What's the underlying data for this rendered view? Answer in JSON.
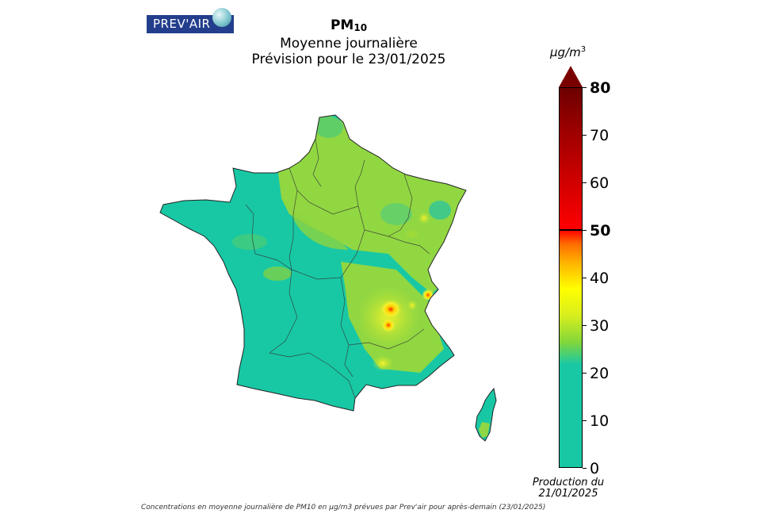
{
  "logo": {
    "text": "PREV'AIR"
  },
  "title": {
    "pollutant": "PM",
    "pollutant_sub": "10",
    "line1": "Moyenne journalière",
    "line2": "Prévision pour le 23/01/2025"
  },
  "colorbar": {
    "unit_base": "µg/m",
    "unit_exp": "3",
    "ticks": [
      "0",
      "10",
      "20",
      "30",
      "40",
      "50",
      "60",
      "70",
      "80"
    ],
    "min": 0,
    "max": 80,
    "highlighted": [
      "50",
      "80"
    ],
    "colors": {
      "low": "#18c8a5",
      "mid": "#82d73a",
      "moderate": "#ffff00",
      "high": "#ff6a00",
      "very_high": "#ff0000",
      "extreme": "#6d0000"
    }
  },
  "production": {
    "line1": "Production du",
    "line2": "21/01/2025"
  },
  "caption": "Concentrations en moyenne journalière de PM10 en µg/m3 prévues par Prev'air pour après-demain (23/01/2025)"
}
